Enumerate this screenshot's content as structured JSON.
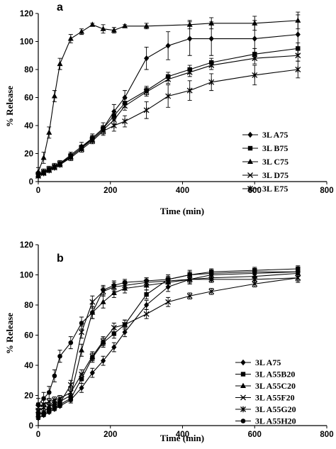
{
  "chart_data": [
    {
      "type": "line",
      "panel_label": "a",
      "xlabel": "Time (min)",
      "ylabel": "% Release",
      "xlim": [
        0,
        800
      ],
      "ylim": [
        0,
        120
      ],
      "xticks": [
        0,
        200,
        400,
        600,
        800
      ],
      "yticks": [
        0,
        20,
        40,
        60,
        80,
        100,
        120
      ],
      "legend_position": "center-right",
      "series": [
        {
          "name": "3L A75",
          "marker": "diamond",
          "x": [
            0,
            15,
            30,
            45,
            60,
            90,
            120,
            150,
            180,
            210,
            240,
            300,
            360,
            420,
            480,
            600,
            720
          ],
          "y": [
            5,
            7,
            9,
            11,
            13,
            19,
            25,
            31,
            38,
            50,
            60,
            88,
            97,
            102,
            102,
            102,
            105
          ],
          "err": [
            2,
            2,
            2,
            2,
            2,
            2,
            3,
            3,
            4,
            5,
            5,
            8,
            10,
            12,
            12,
            13,
            14
          ]
        },
        {
          "name": "3L B75",
          "marker": "square",
          "x": [
            0,
            15,
            30,
            45,
            60,
            90,
            120,
            150,
            180,
            210,
            240,
            300,
            360,
            420,
            480,
            600,
            720
          ],
          "y": [
            4,
            6,
            8,
            10,
            12,
            18,
            24,
            31,
            38,
            47,
            56,
            65,
            75,
            80,
            85,
            91,
            95
          ],
          "err": [
            1,
            1,
            1,
            1,
            1,
            2,
            2,
            2,
            2,
            3,
            3,
            3,
            3,
            3,
            3,
            4,
            4
          ]
        },
        {
          "name": "3L C75",
          "marker": "triangle",
          "x": [
            0,
            15,
            30,
            45,
            60,
            90,
            120,
            150,
            180,
            210,
            240,
            300,
            420,
            480,
            600,
            720
          ],
          "y": [
            7,
            17,
            35,
            61,
            84,
            102,
            107,
            112,
            109,
            108,
            111,
            111,
            112,
            113,
            113,
            115
          ],
          "err": [
            3,
            4,
            4,
            4,
            4,
            3,
            2,
            1,
            3,
            2,
            1,
            2,
            3,
            4,
            5,
            6
          ]
        },
        {
          "name": "3L D75",
          "marker": "x",
          "x": [
            0,
            15,
            30,
            45,
            60,
            90,
            120,
            150,
            180,
            210,
            240,
            300,
            360,
            420,
            480,
            600,
            720
          ],
          "y": [
            5,
            7,
            9,
            11,
            13,
            18,
            24,
            30,
            37,
            44,
            54,
            64,
            73,
            78,
            83,
            88,
            90
          ],
          "err": [
            1,
            1,
            1,
            1,
            1,
            2,
            2,
            2,
            3,
            3,
            3,
            3,
            3,
            3,
            3,
            4,
            4
          ]
        },
        {
          "name": "3L E75",
          "marker": "star",
          "x": [
            0,
            15,
            30,
            45,
            60,
            90,
            120,
            150,
            180,
            210,
            240,
            300,
            360,
            420,
            480,
            600,
            720
          ],
          "y": [
            4,
            6,
            8,
            10,
            12,
            17,
            23,
            29,
            36,
            40,
            43,
            51,
            61,
            65,
            71,
            76,
            80
          ],
          "err": [
            1,
            1,
            1,
            1,
            1,
            2,
            2,
            2,
            3,
            4,
            4,
            6,
            8,
            7,
            6,
            7,
            6
          ]
        }
      ]
    },
    {
      "type": "line",
      "panel_label": "b",
      "xlabel": "Time (min)",
      "ylabel": "% Release",
      "xlim": [
        0,
        800
      ],
      "ylim": [
        0,
        120
      ],
      "xticks": [
        0,
        200,
        400,
        600,
        800
      ],
      "yticks": [
        0,
        20,
        40,
        60,
        80,
        100,
        120
      ],
      "legend_position": "lower-right",
      "series": [
        {
          "name": "3L A75",
          "marker": "diamond",
          "x": [
            0,
            15,
            30,
            45,
            60,
            90,
            120,
            150,
            180,
            210,
            240,
            300,
            360,
            420,
            480,
            600,
            720
          ],
          "y": [
            5,
            7,
            9,
            11,
            13,
            17,
            25,
            35,
            43,
            52,
            62,
            80,
            92,
            97,
            100,
            101,
            102
          ],
          "err": [
            1,
            1,
            1,
            1,
            1,
            2,
            3,
            3,
            3,
            3,
            3,
            3,
            3,
            3,
            2,
            2,
            2
          ]
        },
        {
          "name": "3L A55B20",
          "marker": "square",
          "x": [
            0,
            15,
            30,
            45,
            60,
            90,
            120,
            150,
            180,
            210,
            240,
            300,
            360,
            420,
            480,
            600,
            720
          ],
          "y": [
            8,
            8,
            10,
            12,
            14,
            18,
            31,
            45,
            55,
            61,
            67,
            87,
            97,
            100,
            102,
            103,
            104
          ],
          "err": [
            2,
            2,
            2,
            2,
            2,
            2,
            3,
            3,
            3,
            3,
            3,
            3,
            3,
            3,
            2,
            2,
            2
          ]
        },
        {
          "name": "3L A55C20",
          "marker": "triangle",
          "x": [
            0,
            15,
            30,
            45,
            60,
            90,
            120,
            150,
            180,
            210,
            240,
            300,
            360,
            420,
            480,
            600,
            720
          ],
          "y": [
            7,
            9,
            12,
            15,
            16,
            20,
            50,
            75,
            82,
            88,
            91,
            93,
            95,
            97,
            98,
            99,
            101
          ],
          "err": [
            2,
            2,
            2,
            2,
            2,
            3,
            4,
            4,
            4,
            3,
            3,
            3,
            3,
            3,
            2,
            2,
            2
          ]
        },
        {
          "name": "3L A55F20",
          "marker": "x",
          "x": [
            0,
            15,
            30,
            45,
            60,
            90,
            120,
            150,
            180,
            210,
            240,
            300,
            360,
            420,
            480,
            600,
            720
          ],
          "y": [
            12,
            14,
            16,
            17,
            18,
            22,
            34,
            46,
            56,
            65,
            67,
            74,
            82,
            86,
            89,
            94,
            98
          ],
          "err": [
            3,
            3,
            2,
            2,
            2,
            3,
            3,
            3,
            3,
            3,
            3,
            3,
            3,
            2,
            2,
            2,
            3
          ]
        },
        {
          "name": "3L A55G20",
          "marker": "star",
          "x": [
            0,
            15,
            30,
            45,
            60,
            90,
            120,
            150,
            180,
            210,
            240,
            300,
            360,
            420,
            480,
            600,
            720
          ],
          "y": [
            10,
            12,
            13,
            14,
            15,
            27,
            62,
            82,
            89,
            92,
            93,
            95,
            96,
            97,
            97,
            97,
            98
          ],
          "err": [
            3,
            3,
            2,
            2,
            2,
            3,
            4,
            4,
            3,
            3,
            3,
            3,
            2,
            2,
            2,
            2,
            2
          ]
        },
        {
          "name": "3L A55H20",
          "marker": "circle",
          "x": [
            0,
            15,
            30,
            45,
            60,
            90,
            120,
            150,
            180,
            210,
            240,
            300,
            360,
            420,
            480,
            600,
            720
          ],
          "y": [
            14,
            18,
            22,
            33,
            46,
            55,
            68,
            75,
            90,
            93,
            95,
            96,
            97,
            100,
            101,
            102,
            102
          ],
          "err": [
            4,
            4,
            4,
            4,
            4,
            4,
            4,
            4,
            3,
            3,
            2,
            2,
            2,
            2,
            2,
            2,
            2
          ]
        }
      ]
    }
  ]
}
